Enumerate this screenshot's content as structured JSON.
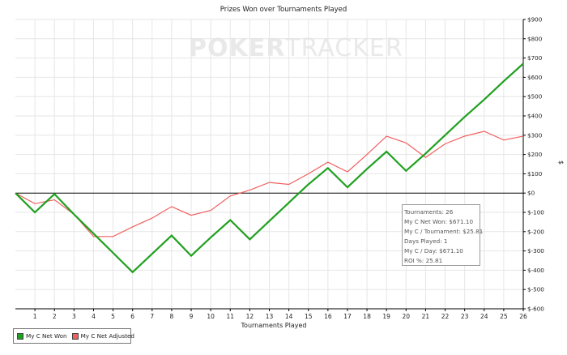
{
  "chart_data": {
    "type": "line",
    "title": "Prizes Won over Tournaments Played",
    "xlabel": "Tournaments Played",
    "ylabel": "$",
    "xlim": [
      0,
      26
    ],
    "ylim": [
      -600,
      900
    ],
    "x_ticks": [
      1,
      2,
      3,
      4,
      5,
      6,
      7,
      8,
      9,
      10,
      11,
      12,
      13,
      14,
      15,
      16,
      17,
      18,
      19,
      20,
      21,
      22,
      23,
      24,
      25,
      26
    ],
    "y_ticks": [
      "$900",
      "$800",
      "$700",
      "$600",
      "$500",
      "$400",
      "$300",
      "$200",
      "$100",
      "$0",
      "$-100",
      "$-200",
      "$-300",
      "$-400",
      "$-500",
      "$-600"
    ],
    "y_tick_values": [
      900,
      800,
      700,
      600,
      500,
      400,
      300,
      200,
      100,
      0,
      -100,
      -200,
      -300,
      -400,
      -500,
      -600
    ],
    "grid": true,
    "legend_position": "bottom-left",
    "x": [
      0,
      1,
      2,
      3,
      4,
      5,
      6,
      7,
      8,
      9,
      10,
      11,
      12,
      13,
      14,
      15,
      16,
      17,
      18,
      19,
      20,
      21,
      22,
      23,
      24,
      25,
      26
    ],
    "series": [
      {
        "name": "My C Net Won",
        "color": "#20a020",
        "values": [
          0,
          -100,
          -5,
          -110,
          -210,
          -310,
          -410,
          -315,
          -220,
          -325,
          -230,
          -140,
          -240,
          -145,
          -50,
          45,
          130,
          30,
          125,
          215,
          115,
          205,
          300,
          395,
          485,
          580,
          671.1
        ]
      },
      {
        "name": "My C Net Adjusted",
        "color": "#f06060",
        "values": [
          0,
          -55,
          -35,
          -110,
          -225,
          -225,
          -175,
          -130,
          -70,
          -115,
          -90,
          -15,
          15,
          55,
          45,
          100,
          160,
          110,
          200,
          295,
          260,
          185,
          255,
          295,
          320,
          275,
          295
        ]
      }
    ]
  },
  "watermark": {
    "bold": "POKER",
    "light": "TRACKER"
  },
  "stats": {
    "tournaments": "Tournaments: 26",
    "net_won": "My C Net Won: $671.10",
    "per_tournament": "My C / Tournament: $25.81",
    "days_played": "Days Played: 1",
    "per_day": "My C / Day: $671.10",
    "roi": "ROI %: 25.81"
  },
  "colors": {
    "grid": "#e6e6e6",
    "zero_line": "#000000",
    "axis": "#000000"
  }
}
